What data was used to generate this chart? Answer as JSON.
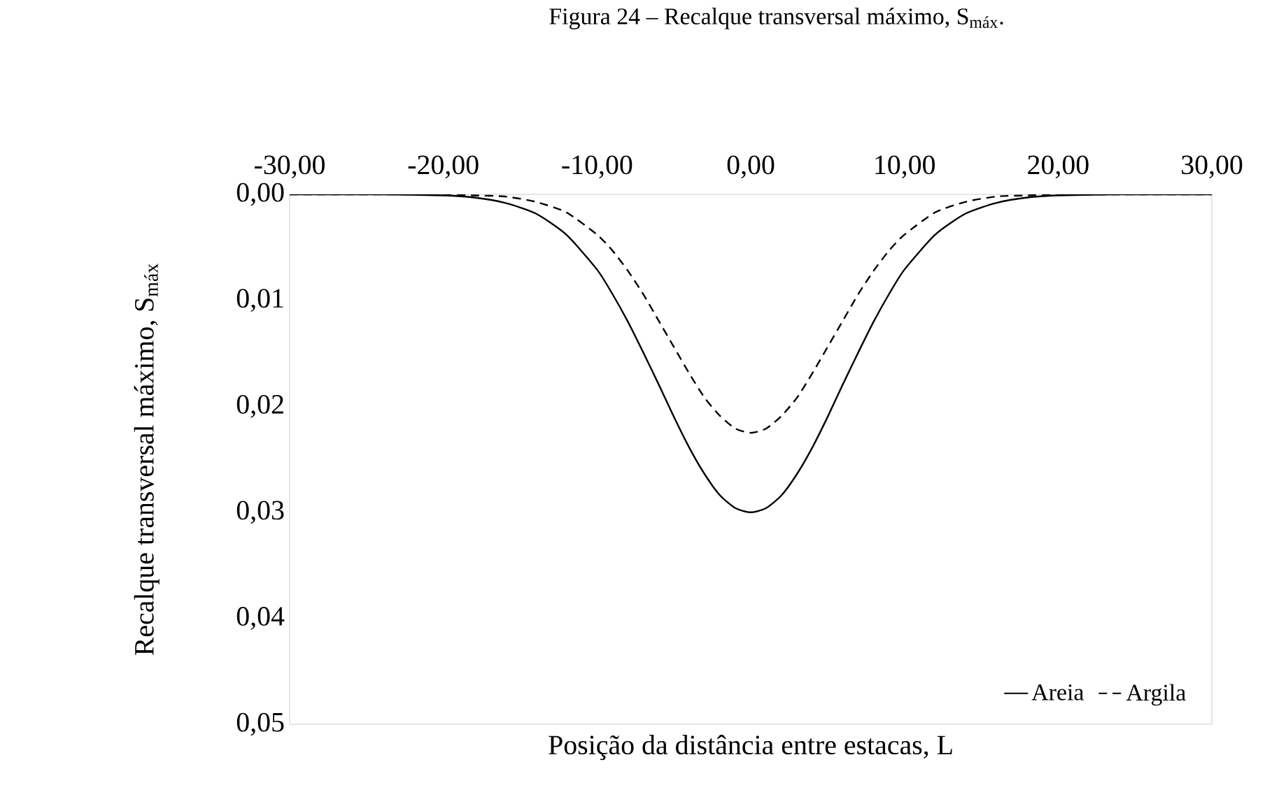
{
  "chart_data": {
    "type": "line",
    "title": "Figura 24 – Recalque transversal máximo, S$_{máx}$.",
    "xlabel": "Posição da distância entre estacas, L",
    "ylabel": "Recalque transversal máximo, S$_{máx}$",
    "x": [
      -30,
      -24,
      -20,
      -18,
      -16,
      -14,
      -12,
      -10,
      -9,
      -8,
      -7,
      -6,
      -5,
      -4,
      -3,
      -2,
      -1,
      0,
      1,
      2,
      3,
      4,
      5,
      6,
      7,
      8,
      9,
      10,
      12,
      14,
      16,
      18,
      20,
      24,
      30
    ],
    "series": [
      {
        "name": "Areia",
        "color": "#000000",
        "line_style": "solid",
        "values": [
          0,
          0,
          0.0001,
          0.0003,
          0.0008,
          0.0018,
          0.0038,
          0.0071,
          0.0094,
          0.012,
          0.0149,
          0.0179,
          0.021,
          0.0239,
          0.0264,
          0.0284,
          0.0296,
          0.03,
          0.0296,
          0.0284,
          0.0264,
          0.0239,
          0.021,
          0.0179,
          0.0149,
          0.012,
          0.0094,
          0.0071,
          0.0038,
          0.0018,
          0.0008,
          0.0003,
          0.0001,
          0,
          0
        ]
      },
      {
        "name": "Argila",
        "color": "#000000",
        "line_style": "dashed",
        "values": [
          0,
          0,
          0,
          0.0001,
          0.0002,
          0.0007,
          0.0017,
          0.0038,
          0.0053,
          0.0072,
          0.0094,
          0.0119,
          0.0144,
          0.0169,
          0.0192,
          0.0209,
          0.0221,
          0.0225,
          0.0221,
          0.0209,
          0.0192,
          0.0169,
          0.0144,
          0.0119,
          0.0094,
          0.0072,
          0.0053,
          0.0038,
          0.0017,
          0.0007,
          0.0002,
          0.0001,
          0,
          0,
          0
        ]
      }
    ],
    "xlim": [
      -30,
      30
    ],
    "ylim": [
      0.05,
      0
    ],
    "xticks": [
      {
        "value": -30,
        "label": "-30,00"
      },
      {
        "value": -20,
        "label": "-20,00"
      },
      {
        "value": -10,
        "label": "-10,00"
      },
      {
        "value": 0,
        "label": "0,00"
      },
      {
        "value": 10,
        "label": "10,00"
      },
      {
        "value": 20,
        "label": "20,00"
      },
      {
        "value": 30,
        "label": "30,00"
      }
    ],
    "yticks": [
      {
        "value": 0,
        "label": "0,00"
      },
      {
        "value": 0.01,
        "label": "0,01"
      },
      {
        "value": 0.02,
        "label": "0,02"
      },
      {
        "value": 0.03,
        "label": "0,03"
      },
      {
        "value": 0.04,
        "label": "0,04"
      },
      {
        "value": 0.05,
        "label": "0,05"
      }
    ],
    "grid": false,
    "legend": "bottom right",
    "marker": "none"
  }
}
